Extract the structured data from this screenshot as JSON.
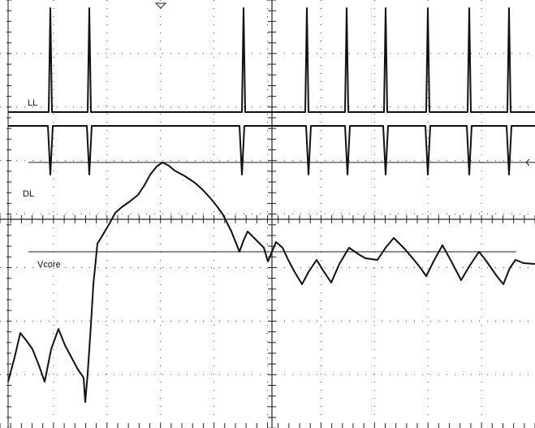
{
  "labels": {
    "ll": "LL",
    "dl": "DL",
    "vcore": "Vcore"
  }
}
